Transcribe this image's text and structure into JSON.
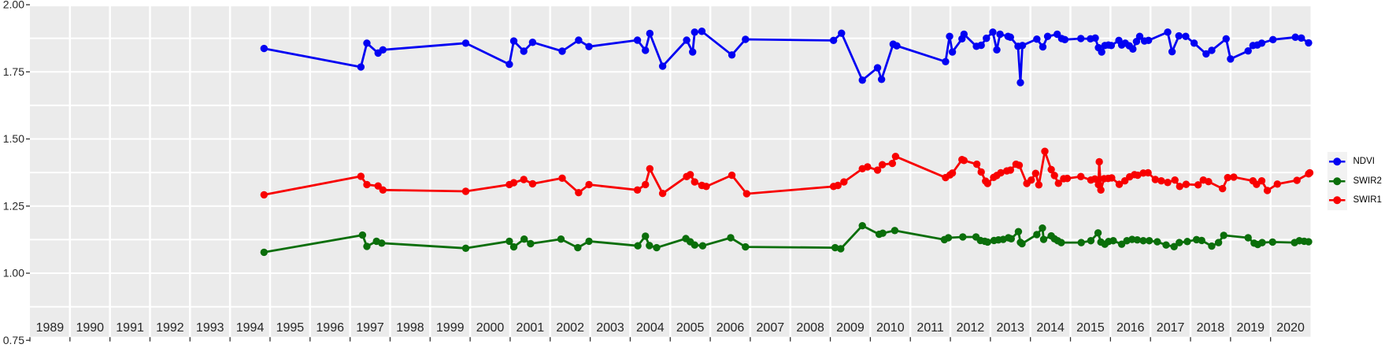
{
  "chart_data": {
    "type": "line",
    "title": "",
    "xlabel": "",
    "ylabel": "",
    "grid": true,
    "panel_background": "#ebebeb",
    "gridline_color": "#ffffff",
    "axis_text_color": "#262626",
    "x_axis": {
      "range": [
        1989,
        2021
      ],
      "year_labels": [
        "1989",
        "1990",
        "1991",
        "1992",
        "1993",
        "1994",
        "1995",
        "1996",
        "1997",
        "1998",
        "1999",
        "2000",
        "2001",
        "2002",
        "2003",
        "2004",
        "2005",
        "2006",
        "2007",
        "2008",
        "2009",
        "2010",
        "2011",
        "2012",
        "2013",
        "2014",
        "2015",
        "2016",
        "2017",
        "2018",
        "2019",
        "2020"
      ]
    },
    "y_axis": {
      "range": [
        0.75,
        2.0
      ],
      "ticks": [
        {
          "value": 2.0,
          "label": "2.00"
        },
        {
          "value": 1.75,
          "label": "1.75"
        },
        {
          "value": 1.5,
          "label": "1.50"
        },
        {
          "value": 1.25,
          "label": "1.25"
        },
        {
          "value": 1.0,
          "label": "1.00"
        },
        {
          "value": 0.75,
          "label": "0.75"
        }
      ],
      "gridline_step": 0.125
    },
    "legend": {
      "position": "right",
      "key_fill": "#f2f2f2",
      "entries": [
        {
          "label": "NDVI",
          "color": "#0202f2"
        },
        {
          "label": "SWIR2",
          "color": "#0a6e0a"
        },
        {
          "label": "SWIR1",
          "color": "#f80000"
        }
      ]
    },
    "series": [
      {
        "name": "NDVI",
        "color": "#0202f2",
        "points": [
          [
            1994.85,
            1.837
          ],
          [
            1997.27,
            1.768
          ],
          [
            1997.42,
            1.857
          ],
          [
            1997.7,
            1.82
          ],
          [
            1997.82,
            1.832
          ],
          [
            1999.89,
            1.857
          ],
          [
            2000.98,
            1.778
          ],
          [
            2001.09,
            1.865
          ],
          [
            2001.34,
            1.827
          ],
          [
            2001.56,
            1.86
          ],
          [
            2002.3,
            1.827
          ],
          [
            2002.71,
            1.868
          ],
          [
            2002.97,
            1.844
          ],
          [
            2004.18,
            1.868
          ],
          [
            2004.38,
            1.83
          ],
          [
            2004.49,
            1.893
          ],
          [
            2004.81,
            1.771
          ],
          [
            2005.41,
            1.868
          ],
          [
            2005.56,
            1.824
          ],
          [
            2005.61,
            1.898
          ],
          [
            2005.79,
            1.901
          ],
          [
            2006.54,
            1.813
          ],
          [
            2006.88,
            1.871
          ],
          [
            2009.08,
            1.867
          ],
          [
            2009.28,
            1.894
          ],
          [
            2009.8,
            1.719
          ],
          [
            2010.18,
            1.765
          ],
          [
            2010.28,
            1.722
          ],
          [
            2010.57,
            1.853
          ],
          [
            2010.66,
            1.847
          ],
          [
            2011.88,
            1.788
          ],
          [
            2011.98,
            1.882
          ],
          [
            2012.05,
            1.824
          ],
          [
            2012.29,
            1.873
          ],
          [
            2012.34,
            1.89
          ],
          [
            2012.65,
            1.845
          ],
          [
            2012.77,
            1.849
          ],
          [
            2012.9,
            1.875
          ],
          [
            2013.06,
            1.898
          ],
          [
            2013.16,
            1.832
          ],
          [
            2013.24,
            1.89
          ],
          [
            2013.44,
            1.882
          ],
          [
            2013.5,
            1.879
          ],
          [
            2013.69,
            1.845
          ],
          [
            2013.75,
            1.71
          ],
          [
            2013.8,
            1.848
          ],
          [
            2014.16,
            1.872
          ],
          [
            2014.31,
            1.843
          ],
          [
            2014.43,
            1.882
          ],
          [
            2014.67,
            1.89
          ],
          [
            2014.78,
            1.874
          ],
          [
            2014.86,
            1.87
          ],
          [
            2015.26,
            1.874
          ],
          [
            2015.5,
            1.873
          ],
          [
            2015.62,
            1.876
          ],
          [
            2015.7,
            1.84
          ],
          [
            2015.78,
            1.824
          ],
          [
            2015.86,
            1.848
          ],
          [
            2015.95,
            1.85
          ],
          [
            2016.02,
            1.848
          ],
          [
            2016.21,
            1.867
          ],
          [
            2016.28,
            1.85
          ],
          [
            2016.37,
            1.857
          ],
          [
            2016.47,
            1.847
          ],
          [
            2016.56,
            1.835
          ],
          [
            2016.65,
            1.863
          ],
          [
            2016.73,
            1.882
          ],
          [
            2016.85,
            1.865
          ],
          [
            2016.95,
            1.867
          ],
          [
            2017.43,
            1.898
          ],
          [
            2017.54,
            1.825
          ],
          [
            2017.71,
            1.884
          ],
          [
            2017.88,
            1.882
          ],
          [
            2018.09,
            1.857
          ],
          [
            2018.39,
            1.817
          ],
          [
            2018.53,
            1.83
          ],
          [
            2018.89,
            1.873
          ],
          [
            2019.0,
            1.798
          ],
          [
            2019.44,
            1.828
          ],
          [
            2019.56,
            1.848
          ],
          [
            2019.67,
            1.85
          ],
          [
            2019.78,
            1.857
          ],
          [
            2020.06,
            1.87
          ],
          [
            2020.62,
            1.879
          ],
          [
            2020.77,
            1.876
          ],
          [
            2020.95,
            1.858
          ]
        ]
      },
      {
        "name": "SWIR2",
        "color": "#0a6e0a",
        "points": [
          [
            1994.85,
            1.078
          ],
          [
            1997.31,
            1.142
          ],
          [
            1997.42,
            1.1
          ],
          [
            1997.66,
            1.119
          ],
          [
            1997.79,
            1.112
          ],
          [
            1999.89,
            1.093
          ],
          [
            2000.98,
            1.119
          ],
          [
            2001.09,
            1.098
          ],
          [
            2001.35,
            1.127
          ],
          [
            2001.51,
            1.11
          ],
          [
            2002.27,
            1.127
          ],
          [
            2002.69,
            1.095
          ],
          [
            2002.97,
            1.119
          ],
          [
            2004.19,
            1.102
          ],
          [
            2004.38,
            1.138
          ],
          [
            2004.48,
            1.103
          ],
          [
            2004.66,
            1.095
          ],
          [
            2005.39,
            1.129
          ],
          [
            2005.5,
            1.117
          ],
          [
            2005.61,
            1.105
          ],
          [
            2005.81,
            1.102
          ],
          [
            2006.51,
            1.132
          ],
          [
            2006.88,
            1.098
          ],
          [
            2009.12,
            1.095
          ],
          [
            2009.26,
            1.091
          ],
          [
            2009.8,
            1.177
          ],
          [
            2010.22,
            1.145
          ],
          [
            2010.31,
            1.149
          ],
          [
            2010.61,
            1.159
          ],
          [
            2011.85,
            1.125
          ],
          [
            2011.95,
            1.132
          ],
          [
            2012.31,
            1.135
          ],
          [
            2012.64,
            1.135
          ],
          [
            2012.75,
            1.122
          ],
          [
            2012.86,
            1.119
          ],
          [
            2012.93,
            1.116
          ],
          [
            2013.09,
            1.122
          ],
          [
            2013.2,
            1.124
          ],
          [
            2013.32,
            1.126
          ],
          [
            2013.45,
            1.132
          ],
          [
            2013.52,
            1.128
          ],
          [
            2013.7,
            1.155
          ],
          [
            2013.75,
            1.115
          ],
          [
            2013.79,
            1.11
          ],
          [
            2014.16,
            1.144
          ],
          [
            2014.3,
            1.168
          ],
          [
            2014.33,
            1.126
          ],
          [
            2014.52,
            1.139
          ],
          [
            2014.6,
            1.128
          ],
          [
            2014.68,
            1.121
          ],
          [
            2014.77,
            1.114
          ],
          [
            2015.27,
            1.114
          ],
          [
            2015.51,
            1.121
          ],
          [
            2015.69,
            1.15
          ],
          [
            2015.76,
            1.116
          ],
          [
            2015.86,
            1.108
          ],
          [
            2015.95,
            1.118
          ],
          [
            2016.07,
            1.121
          ],
          [
            2016.28,
            1.108
          ],
          [
            2016.41,
            1.121
          ],
          [
            2016.54,
            1.126
          ],
          [
            2016.67,
            1.124
          ],
          [
            2016.82,
            1.121
          ],
          [
            2016.97,
            1.121
          ],
          [
            2017.17,
            1.117
          ],
          [
            2017.39,
            1.105
          ],
          [
            2017.59,
            1.099
          ],
          [
            2017.72,
            1.114
          ],
          [
            2017.92,
            1.118
          ],
          [
            2018.15,
            1.125
          ],
          [
            2018.28,
            1.122
          ],
          [
            2018.53,
            1.101
          ],
          [
            2018.7,
            1.114
          ],
          [
            2018.83,
            1.141
          ],
          [
            2019.44,
            1.132
          ],
          [
            2019.59,
            1.112
          ],
          [
            2019.68,
            1.107
          ],
          [
            2019.79,
            1.114
          ],
          [
            2020.05,
            1.116
          ],
          [
            2020.6,
            1.114
          ],
          [
            2020.72,
            1.121
          ],
          [
            2020.84,
            1.119
          ],
          [
            2020.95,
            1.117
          ]
        ]
      },
      {
        "name": "SWIR1",
        "color": "#f80000",
        "points": [
          [
            1994.85,
            1.292
          ],
          [
            1997.27,
            1.361
          ],
          [
            1997.42,
            1.33
          ],
          [
            1997.7,
            1.325
          ],
          [
            1997.82,
            1.31
          ],
          [
            1999.89,
            1.305
          ],
          [
            2000.98,
            1.33
          ],
          [
            2001.09,
            1.337
          ],
          [
            2001.34,
            1.349
          ],
          [
            2001.56,
            1.333
          ],
          [
            2002.3,
            1.354
          ],
          [
            2002.71,
            1.3
          ],
          [
            2002.97,
            1.33
          ],
          [
            2004.18,
            1.31
          ],
          [
            2004.38,
            1.33
          ],
          [
            2004.49,
            1.389
          ],
          [
            2004.81,
            1.297
          ],
          [
            2005.41,
            1.36
          ],
          [
            2005.5,
            1.367
          ],
          [
            2005.61,
            1.34
          ],
          [
            2005.79,
            1.327
          ],
          [
            2005.9,
            1.323
          ],
          [
            2006.54,
            1.365
          ],
          [
            2006.91,
            1.296
          ],
          [
            2009.08,
            1.323
          ],
          [
            2009.19,
            1.327
          ],
          [
            2009.34,
            1.34
          ],
          [
            2009.8,
            1.389
          ],
          [
            2009.93,
            1.396
          ],
          [
            2010.18,
            1.384
          ],
          [
            2010.3,
            1.404
          ],
          [
            2010.55,
            1.409
          ],
          [
            2010.63,
            1.435
          ],
          [
            2011.88,
            1.356
          ],
          [
            2011.99,
            1.366
          ],
          [
            2012.05,
            1.373
          ],
          [
            2012.29,
            1.423
          ],
          [
            2012.34,
            1.42
          ],
          [
            2012.66,
            1.406
          ],
          [
            2012.77,
            1.377
          ],
          [
            2012.88,
            1.343
          ],
          [
            2012.93,
            1.334
          ],
          [
            2013.08,
            1.357
          ],
          [
            2013.16,
            1.364
          ],
          [
            2013.26,
            1.374
          ],
          [
            2013.41,
            1.381
          ],
          [
            2013.5,
            1.384
          ],
          [
            2013.64,
            1.406
          ],
          [
            2013.72,
            1.402
          ],
          [
            2013.91,
            1.334
          ],
          [
            2014.02,
            1.347
          ],
          [
            2014.13,
            1.372
          ],
          [
            2014.21,
            1.329
          ],
          [
            2014.36,
            1.454
          ],
          [
            2014.52,
            1.386
          ],
          [
            2014.6,
            1.364
          ],
          [
            2014.7,
            1.335
          ],
          [
            2014.83,
            1.352
          ],
          [
            2014.92,
            1.353
          ],
          [
            2015.26,
            1.36
          ],
          [
            2015.51,
            1.347
          ],
          [
            2015.61,
            1.351
          ],
          [
            2015.7,
            1.33
          ],
          [
            2015.72,
            1.415
          ],
          [
            2015.76,
            1.31
          ],
          [
            2015.84,
            1.352
          ],
          [
            2015.94,
            1.353
          ],
          [
            2016.03,
            1.355
          ],
          [
            2016.22,
            1.331
          ],
          [
            2016.36,
            1.344
          ],
          [
            2016.48,
            1.359
          ],
          [
            2016.6,
            1.367
          ],
          [
            2016.68,
            1.365
          ],
          [
            2016.82,
            1.373
          ],
          [
            2016.94,
            1.374
          ],
          [
            2017.12,
            1.349
          ],
          [
            2017.27,
            1.344
          ],
          [
            2017.43,
            1.338
          ],
          [
            2017.61,
            1.347
          ],
          [
            2017.73,
            1.323
          ],
          [
            2017.89,
            1.331
          ],
          [
            2018.19,
            1.329
          ],
          [
            2018.32,
            1.347
          ],
          [
            2018.45,
            1.341
          ],
          [
            2018.8,
            1.315
          ],
          [
            2018.93,
            1.356
          ],
          [
            2019.08,
            1.358
          ],
          [
            2019.56,
            1.344
          ],
          [
            2019.65,
            1.331
          ],
          [
            2019.78,
            1.344
          ],
          [
            2019.92,
            1.308
          ],
          [
            2020.17,
            1.332
          ],
          [
            2020.66,
            1.346
          ],
          [
            2020.95,
            1.37
          ],
          [
            2020.98,
            1.374
          ]
        ]
      }
    ]
  }
}
